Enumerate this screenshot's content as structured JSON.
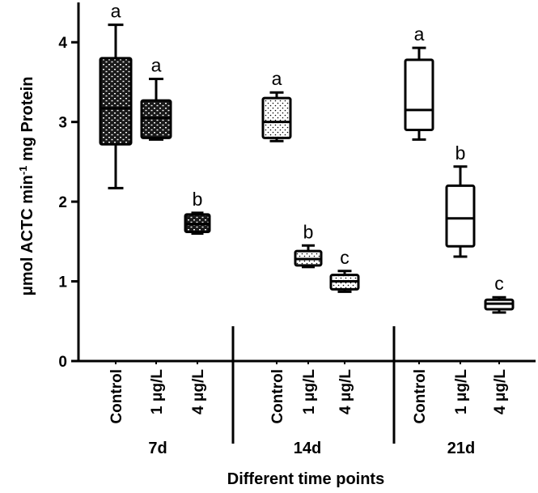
{
  "chart_data": {
    "type": "box",
    "ylabel": "μmol ACTC min",
    "ylabel_sup": "-1",
    "ylabel_tail": " mg Protein",
    "xlabel": "Different time points",
    "ylim": [
      0,
      4.5
    ],
    "yticks": [
      {
        "value": 0,
        "label": "0"
      },
      {
        "value": 1,
        "label": "1"
      },
      {
        "value": 2,
        "label": "2"
      },
      {
        "value": 3,
        "label": "3"
      },
      {
        "value": 4,
        "label": "4"
      }
    ],
    "groups": [
      {
        "label": "7d",
        "boxes": [
          {
            "category": "Control",
            "min": 2.17,
            "q1": 2.72,
            "median": 3.17,
            "q3": 3.8,
            "max": 4.22,
            "letter": "a",
            "fill": "bricks"
          },
          {
            "category": "1 μg/L",
            "min": 2.78,
            "q1": 2.8,
            "median": 3.05,
            "q3": 3.27,
            "max": 3.54,
            "letter": "a",
            "fill": "bricks"
          },
          {
            "category": "4 μg/L",
            "min": 1.6,
            "q1": 1.62,
            "median": 1.72,
            "q3": 1.84,
            "max": 1.86,
            "letter": "b",
            "fill": "bricks"
          }
        ]
      },
      {
        "label": "14d",
        "boxes": [
          {
            "category": "Control",
            "min": 2.76,
            "q1": 2.8,
            "median": 3.0,
            "q3": 3.3,
            "max": 3.37,
            "letter": "a",
            "fill": "dots"
          },
          {
            "category": "1 μg/L",
            "min": 1.18,
            "q1": 1.2,
            "median": 1.28,
            "q3": 1.38,
            "max": 1.45,
            "letter": "b",
            "fill": "dots"
          },
          {
            "category": "4 μg/L",
            "min": 0.87,
            "q1": 0.9,
            "median": 1.0,
            "q3": 1.08,
            "max": 1.13,
            "letter": "c",
            "fill": "dots"
          }
        ]
      },
      {
        "label": "21d",
        "boxes": [
          {
            "category": "Control",
            "min": 2.78,
            "q1": 2.9,
            "median": 3.15,
            "q3": 3.78,
            "max": 3.93,
            "letter": "a",
            "fill": "none"
          },
          {
            "category": "1 μg/L",
            "min": 1.31,
            "q1": 1.44,
            "median": 1.79,
            "q3": 2.2,
            "max": 2.44,
            "letter": "b",
            "fill": "none"
          },
          {
            "category": "4 μg/L",
            "min": 0.61,
            "q1": 0.65,
            "median": 0.72,
            "q3": 0.77,
            "max": 0.8,
            "letter": "c",
            "fill": "none"
          }
        ]
      }
    ]
  }
}
